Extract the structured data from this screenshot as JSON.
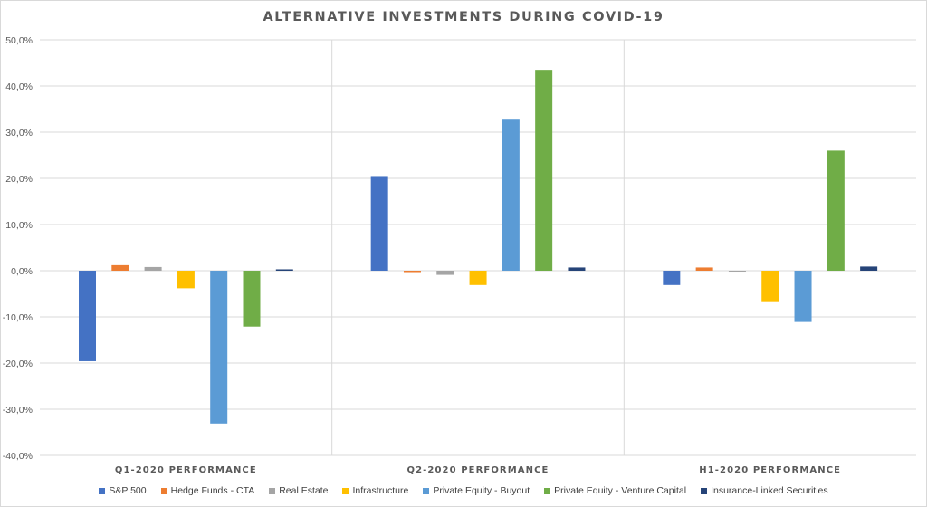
{
  "chart_data": {
    "type": "bar",
    "title": "ALTERNATIVE INVESTMENTS DURING COVID-19",
    "categories": [
      "Q1-2020 PERFORMANCE",
      "Q2-2020 PERFORMANCE",
      "H1-2020 PERFORMANCE"
    ],
    "series": [
      {
        "name": "S&P 500",
        "color": "#4472c4",
        "values": [
          -19.6,
          20.5,
          -3.1
        ]
      },
      {
        "name": "Hedge Funds - CTA",
        "color": "#ed7d31",
        "values": [
          1.2,
          -0.3,
          0.7
        ]
      },
      {
        "name": "Real Estate",
        "color": "#a5a5a5",
        "values": [
          0.8,
          -0.9,
          -0.2
        ]
      },
      {
        "name": "Infrastructure",
        "color": "#ffc000",
        "values": [
          -3.8,
          -3.1,
          -6.8
        ]
      },
      {
        "name": "Private Equity - Buyout",
        "color": "#5b9bd5",
        "values": [
          -33.1,
          32.9,
          -11.1
        ]
      },
      {
        "name": "Private Equity - Venture Capital",
        "color": "#70ad47",
        "values": [
          -12.1,
          43.5,
          26.0
        ]
      },
      {
        "name": "Insurance-Linked Securities",
        "color": "#264478",
        "values": [
          0.3,
          0.7,
          0.9
        ]
      }
    ],
    "ylim": [
      -40,
      50
    ],
    "yticks": [
      "50,0%",
      "40,0%",
      "30,0%",
      "20,0%",
      "10,0%",
      "0,0%",
      "-10,0%",
      "-20,0%",
      "-30,0%",
      "-40,0%"
    ],
    "grid": true,
    "category_separators": true,
    "legend_position": "bottom"
  }
}
